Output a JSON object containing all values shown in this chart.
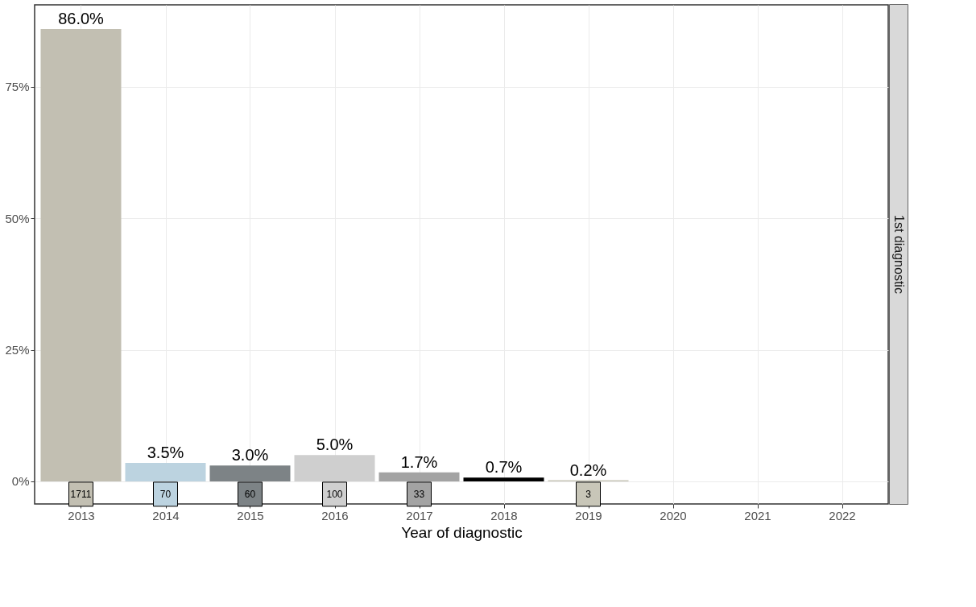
{
  "chart_data": {
    "type": "bar",
    "xlabel": "Year of diagnostic",
    "categories": [
      "2013",
      "2014",
      "2015",
      "2016",
      "2017",
      "2018",
      "2019",
      "2020",
      "2021",
      "2022"
    ],
    "values": [
      86.0,
      3.5,
      3.0,
      5.0,
      1.7,
      0.7,
      0.2,
      null,
      null,
      null
    ],
    "colors": [
      "#c2bfb2",
      "#bcd3e0",
      "#7d8386",
      "#cfcfcf",
      "#a3a3a3",
      "#000000",
      "#c8c6b8",
      "#cccccc",
      "#cccccc",
      "#cccccc"
    ],
    "value_labels": [
      "86.0%",
      "3.5%",
      "3.0%",
      "5.0%",
      "1.7%",
      "0.7%",
      "0.2%",
      null,
      null,
      null
    ],
    "ylim": [
      -4.3,
      90.6
    ],
    "yticks": [
      {
        "value": 0,
        "label": "0%"
      },
      {
        "value": 25,
        "label": "25%"
      },
      {
        "value": 50,
        "label": "50%"
      },
      {
        "value": 75,
        "label": "75%"
      }
    ],
    "grid": true,
    "annotations": [
      {
        "text": "1711",
        "x": "2013",
        "y": 0
      },
      {
        "text": "70",
        "x": "2014",
        "y": 0
      },
      {
        "text": "60",
        "x": "2015",
        "y": 0
      },
      {
        "text": "100",
        "x": "2016",
        "y": 0
      },
      {
        "text": "33",
        "x": "2017",
        "y": 0
      },
      {
        "text": "3",
        "x": "2019",
        "y": 0
      },
      "1st diagnostic"
    ]
  }
}
